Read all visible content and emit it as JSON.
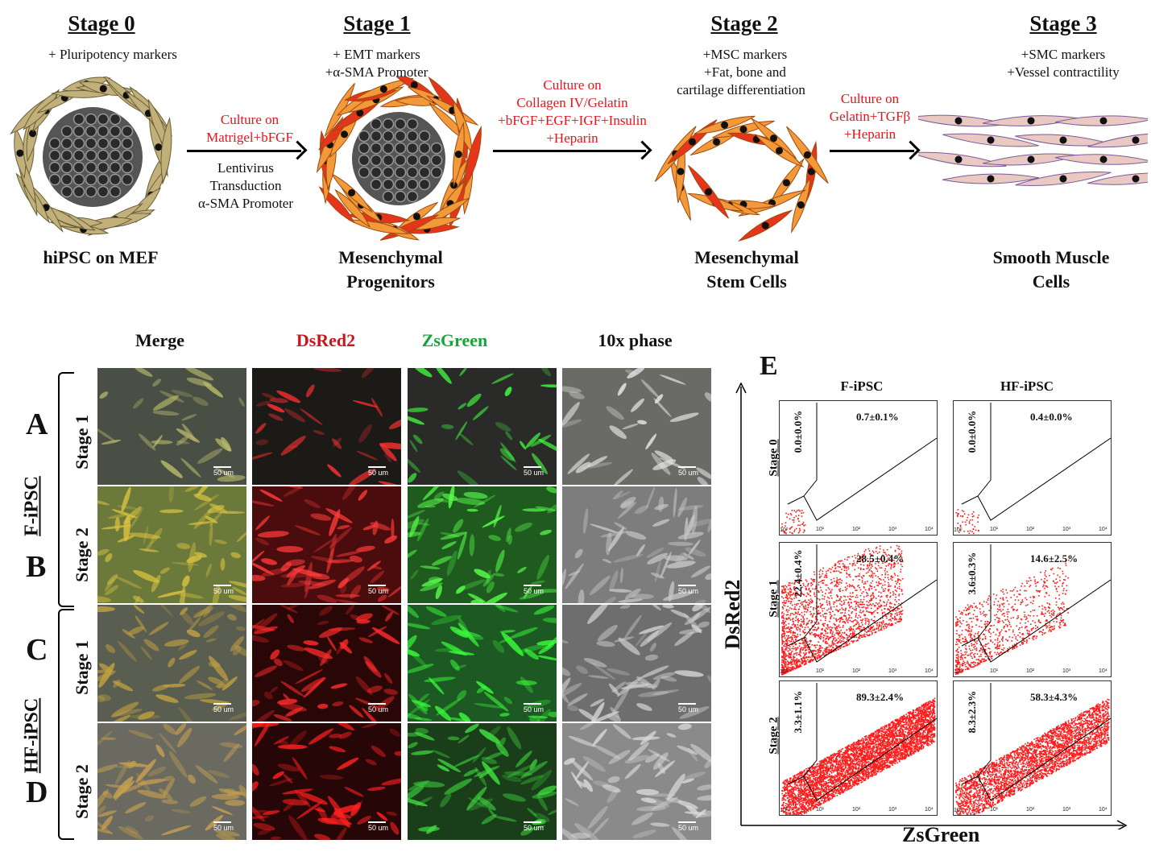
{
  "schematic": {
    "stages": [
      {
        "title": "Stage 0",
        "lines": [
          "+ Pluripotency markers"
        ],
        "caption": [
          "hiPSC on MEF"
        ]
      },
      {
        "title": "Stage 1",
        "lines": [
          "+ EMT markers",
          "+α-SMA Promoter"
        ],
        "caption": [
          "Mesenchymal",
          "Progenitors"
        ]
      },
      {
        "title": "Stage 2",
        "lines": [
          "+MSC markers",
          "+Fat, bone and",
          "cartilage differentiation"
        ],
        "caption": [
          "Mesenchymal",
          "Stem Cells"
        ]
      },
      {
        "title": "Stage 3",
        "lines": [
          "+SMC markers",
          "+Vessel contractility"
        ],
        "caption": [
          "Smooth Muscle",
          "Cells"
        ]
      }
    ],
    "arrows": [
      {
        "red": [
          "Culture on",
          "Matrigel+bFGF"
        ],
        "black": [
          "Lentivirus",
          "Transduction",
          "α-SMA Promoter"
        ]
      },
      {
        "red": [
          "Culture on",
          "Collagen IV/Gelatin",
          "+bFGF+EGF+IGF+Insulin",
          "+Heparin"
        ],
        "black": []
      },
      {
        "red": [
          "Culture on",
          "Gelatin+TGFβ",
          "+Heparin"
        ],
        "black": []
      }
    ]
  },
  "micrographs": {
    "columns": [
      "Merge",
      "DsRed2",
      "ZsGreen",
      "10x phase"
    ],
    "column_colors": [
      "#111111",
      "#c8161d",
      "#1aa33a",
      "#111111"
    ],
    "rows": [
      "A",
      "B",
      "C",
      "D"
    ],
    "row_stages": [
      "Stage 1",
      "Stage 2",
      "Stage 1",
      "Stage 2"
    ],
    "groups": [
      "F-iPSC",
      "HF-iPSC"
    ],
    "scale_bar": "50 um"
  },
  "flow": {
    "panel_label": "E",
    "columns": [
      "F-iPSC",
      "HF-iPSC"
    ],
    "rows": [
      "Stage 0",
      "Stage 1",
      "Stage 2"
    ],
    "ylabel": "DsRed2",
    "xlabel": "ZsGreen",
    "gates": [
      [
        {
          "left": "0.0±0.0%",
          "right": "0.7±0.1%"
        },
        {
          "left": "0.0±0.0%",
          "right": "0.4±0.0%"
        }
      ],
      [
        {
          "left": "22.4±0.4%",
          "right": "28.5±0.4%"
        },
        {
          "left": "3.6±0.3%",
          "right": "14.6±2.5%"
        }
      ],
      [
        {
          "left": "3.3±1.1%",
          "right": "89.3±2.4%"
        },
        {
          "left": "8.3±2.3%",
          "right": "58.3±4.3%"
        }
      ]
    ]
  }
}
